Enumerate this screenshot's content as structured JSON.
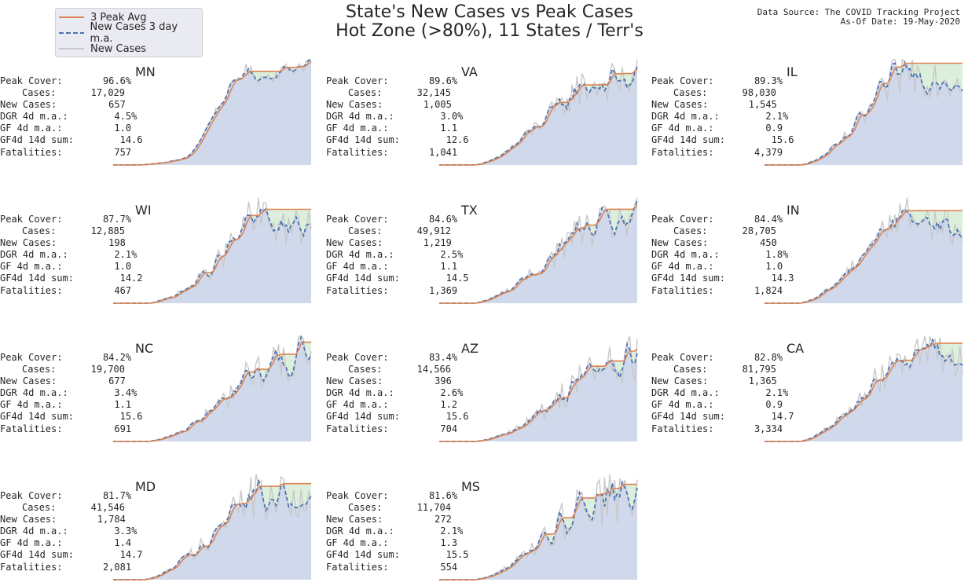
{
  "title_line1": "State's New Cases vs Peak Cases",
  "title_line2": "Hot Zone (>80%), 11 States / Terr's",
  "source_line1": "Data Source: The COVID Tracking Project",
  "source_line2": "As-Of Date: 19-May-2020",
  "legend": [
    {
      "label": "3 Peak Avg",
      "color": "#dd8452",
      "style": "solid"
    },
    {
      "label": "New Cases 3 day m.a.",
      "color": "#4c72b0",
      "style": "dashed"
    },
    {
      "label": "New Cases",
      "color": "#c8c8c8",
      "style": "solid"
    }
  ],
  "colors": {
    "peak": "#dd8452",
    "ma": "#4c72b0",
    "raw": "#c8c8c8",
    "fill_blue": "#d0d9ec",
    "fill_green": "#dcefdc"
  },
  "stat_labels": [
    "Peak Cover:",
    "Cases:",
    "New Cases:",
    "DGR 4d m.a.:",
    "GF 4d m.a.:",
    "GF4d 14d sum:",
    "Fatalities:"
  ],
  "chart_data": [
    {
      "type": "area",
      "state": "MN",
      "stats": [
        "96.6%",
        "17,029",
        "657",
        "4.5%",
        "1.0",
        "14.6",
        "757"
      ],
      "trend": [
        0.5,
        0.55,
        0.6,
        0.8,
        3.0,
        3.6,
        3.2,
        3.5,
        3.8
      ],
      "volatility": 0.05,
      "plateau": 0.2
    },
    {
      "type": "area",
      "state": "VA",
      "stats": [
        "89.6%",
        "32,145",
        "1,005",
        "3.0%",
        "1.1",
        "12.6",
        "1,041"
      ],
      "trend": [
        0.4,
        0.6,
        0.8,
        1.0,
        1.1,
        1.0,
        1.1,
        1.15,
        1.2
      ],
      "volatility": 0.15,
      "plateau": 0.3
    },
    {
      "type": "area",
      "state": "IL",
      "stats": [
        "89.3%",
        "98,030",
        "1,545",
        "2.1%",
        "0.9",
        "15.6",
        "4,379"
      ],
      "trend": [
        0.45,
        0.6,
        0.8,
        1.0,
        1.15,
        1.2,
        1.15,
        1.1,
        1.05
      ],
      "volatility": 0.16,
      "plateau": 0.3
    },
    {
      "type": "area",
      "state": "WI",
      "stats": [
        "87.7%",
        "12,885",
        "198",
        "2.1%",
        "1.0",
        "14.2",
        "467"
      ],
      "trend": [
        0.7,
        1.0,
        0.9,
        1.0,
        1.2,
        1.4,
        1.5,
        1.35,
        1.25
      ],
      "volatility": 0.18,
      "plateau": 0.3
    },
    {
      "type": "area",
      "state": "TX",
      "stats": [
        "84.6%",
        "49,912",
        "1,219",
        "2.5%",
        "1.1",
        "14.5",
        "1,369"
      ],
      "trend": [
        0.8,
        1.0,
        0.9,
        0.85,
        0.9,
        0.95,
        1.0,
        1.1,
        1.2
      ],
      "volatility": 0.16,
      "plateau": 0.3
    },
    {
      "type": "area",
      "state": "IN",
      "stats": [
        "84.4%",
        "28,705",
        "450",
        "1.8%",
        "1.0",
        "14.3",
        "1,824"
      ],
      "trend": [
        0.7,
        1.0,
        0.95,
        1.05,
        1.2,
        1.15,
        1.05,
        0.95,
        0.85
      ],
      "volatility": 0.14,
      "plateau": 0.3
    },
    {
      "type": "area",
      "state": "NC",
      "stats": [
        "84.2%",
        "19,700",
        "677",
        "3.4%",
        "1.1",
        "15.6",
        "691"
      ],
      "trend": [
        0.5,
        0.7,
        0.75,
        0.8,
        0.9,
        1.0,
        1.1,
        1.2,
        1.35
      ],
      "volatility": 0.18,
      "plateau": 0.3
    },
    {
      "type": "area",
      "state": "AZ",
      "stats": [
        "83.4%",
        "14,566",
        "396",
        "2.6%",
        "1.2",
        "15.6",
        "704"
      ],
      "trend": [
        0.5,
        0.6,
        0.65,
        0.7,
        0.8,
        0.9,
        1.05,
        1.2,
        1.3
      ],
      "volatility": 0.2,
      "plateau": 0.3
    },
    {
      "type": "area",
      "state": "CA",
      "stats": [
        "82.8%",
        "81,795",
        "1,365",
        "2.1%",
        "0.9",
        "14.7",
        "3,334"
      ],
      "trend": [
        0.7,
        0.9,
        0.95,
        1.0,
        1.1,
        1.15,
        1.1,
        1.05,
        1.0
      ],
      "volatility": 0.16,
      "plateau": 0.3
    },
    {
      "type": "area",
      "state": "MD",
      "stats": [
        "81.7%",
        "41,546",
        "1,784",
        "3.3%",
        "1.4",
        "14.7",
        "2,081"
      ],
      "trend": [
        0.3,
        0.5,
        0.9,
        1.0,
        1.05,
        1.1,
        1.1,
        1.05,
        1.1
      ],
      "volatility": 0.18,
      "plateau": 0.25
    },
    {
      "type": "area",
      "state": "MS",
      "stats": [
        "81.6%",
        "11,704",
        "272",
        "2.1%",
        "1.3",
        "15.5",
        "554"
      ],
      "trend": [
        0.6,
        0.75,
        0.85,
        0.95,
        1.05,
        1.15,
        1.2,
        1.25,
        1.3
      ],
      "volatility": 0.22,
      "plateau": 0.3
    }
  ]
}
